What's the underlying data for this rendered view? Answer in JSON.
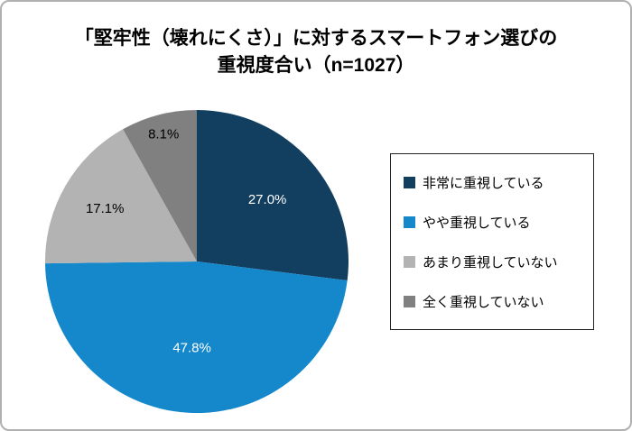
{
  "header": {
    "title_line1": "「堅牢性（壊れにくさ）」に対するスマートフォン選びの",
    "title_line2": "重視度合い（n=1027）"
  },
  "chart_data": {
    "type": "pie",
    "title": "「堅牢性（壊れにくさ）」に対するスマートフォン選びの重視度合い（n=1027）",
    "sample_size_label": "n=1027",
    "labels": [
      "非常に重視している",
      "やや重視している",
      "あまり重視していない",
      "全く重視していない"
    ],
    "values": [
      27.0,
      47.8,
      17.1,
      8.1
    ],
    "value_labels": [
      "27.0%",
      "47.8%",
      "17.1%",
      "8.1%"
    ],
    "colors": [
      "#123f5f",
      "#1588cb",
      "#b3b3b3",
      "#808080"
    ],
    "label_colors": [
      "#ffffff",
      "#ffffff",
      "#000000",
      "#000000"
    ],
    "label_radii": [
      0.62,
      0.57,
      0.7,
      0.87
    ],
    "start_angle_deg": 0,
    "direction": "clockwise",
    "legend_position": "right"
  }
}
